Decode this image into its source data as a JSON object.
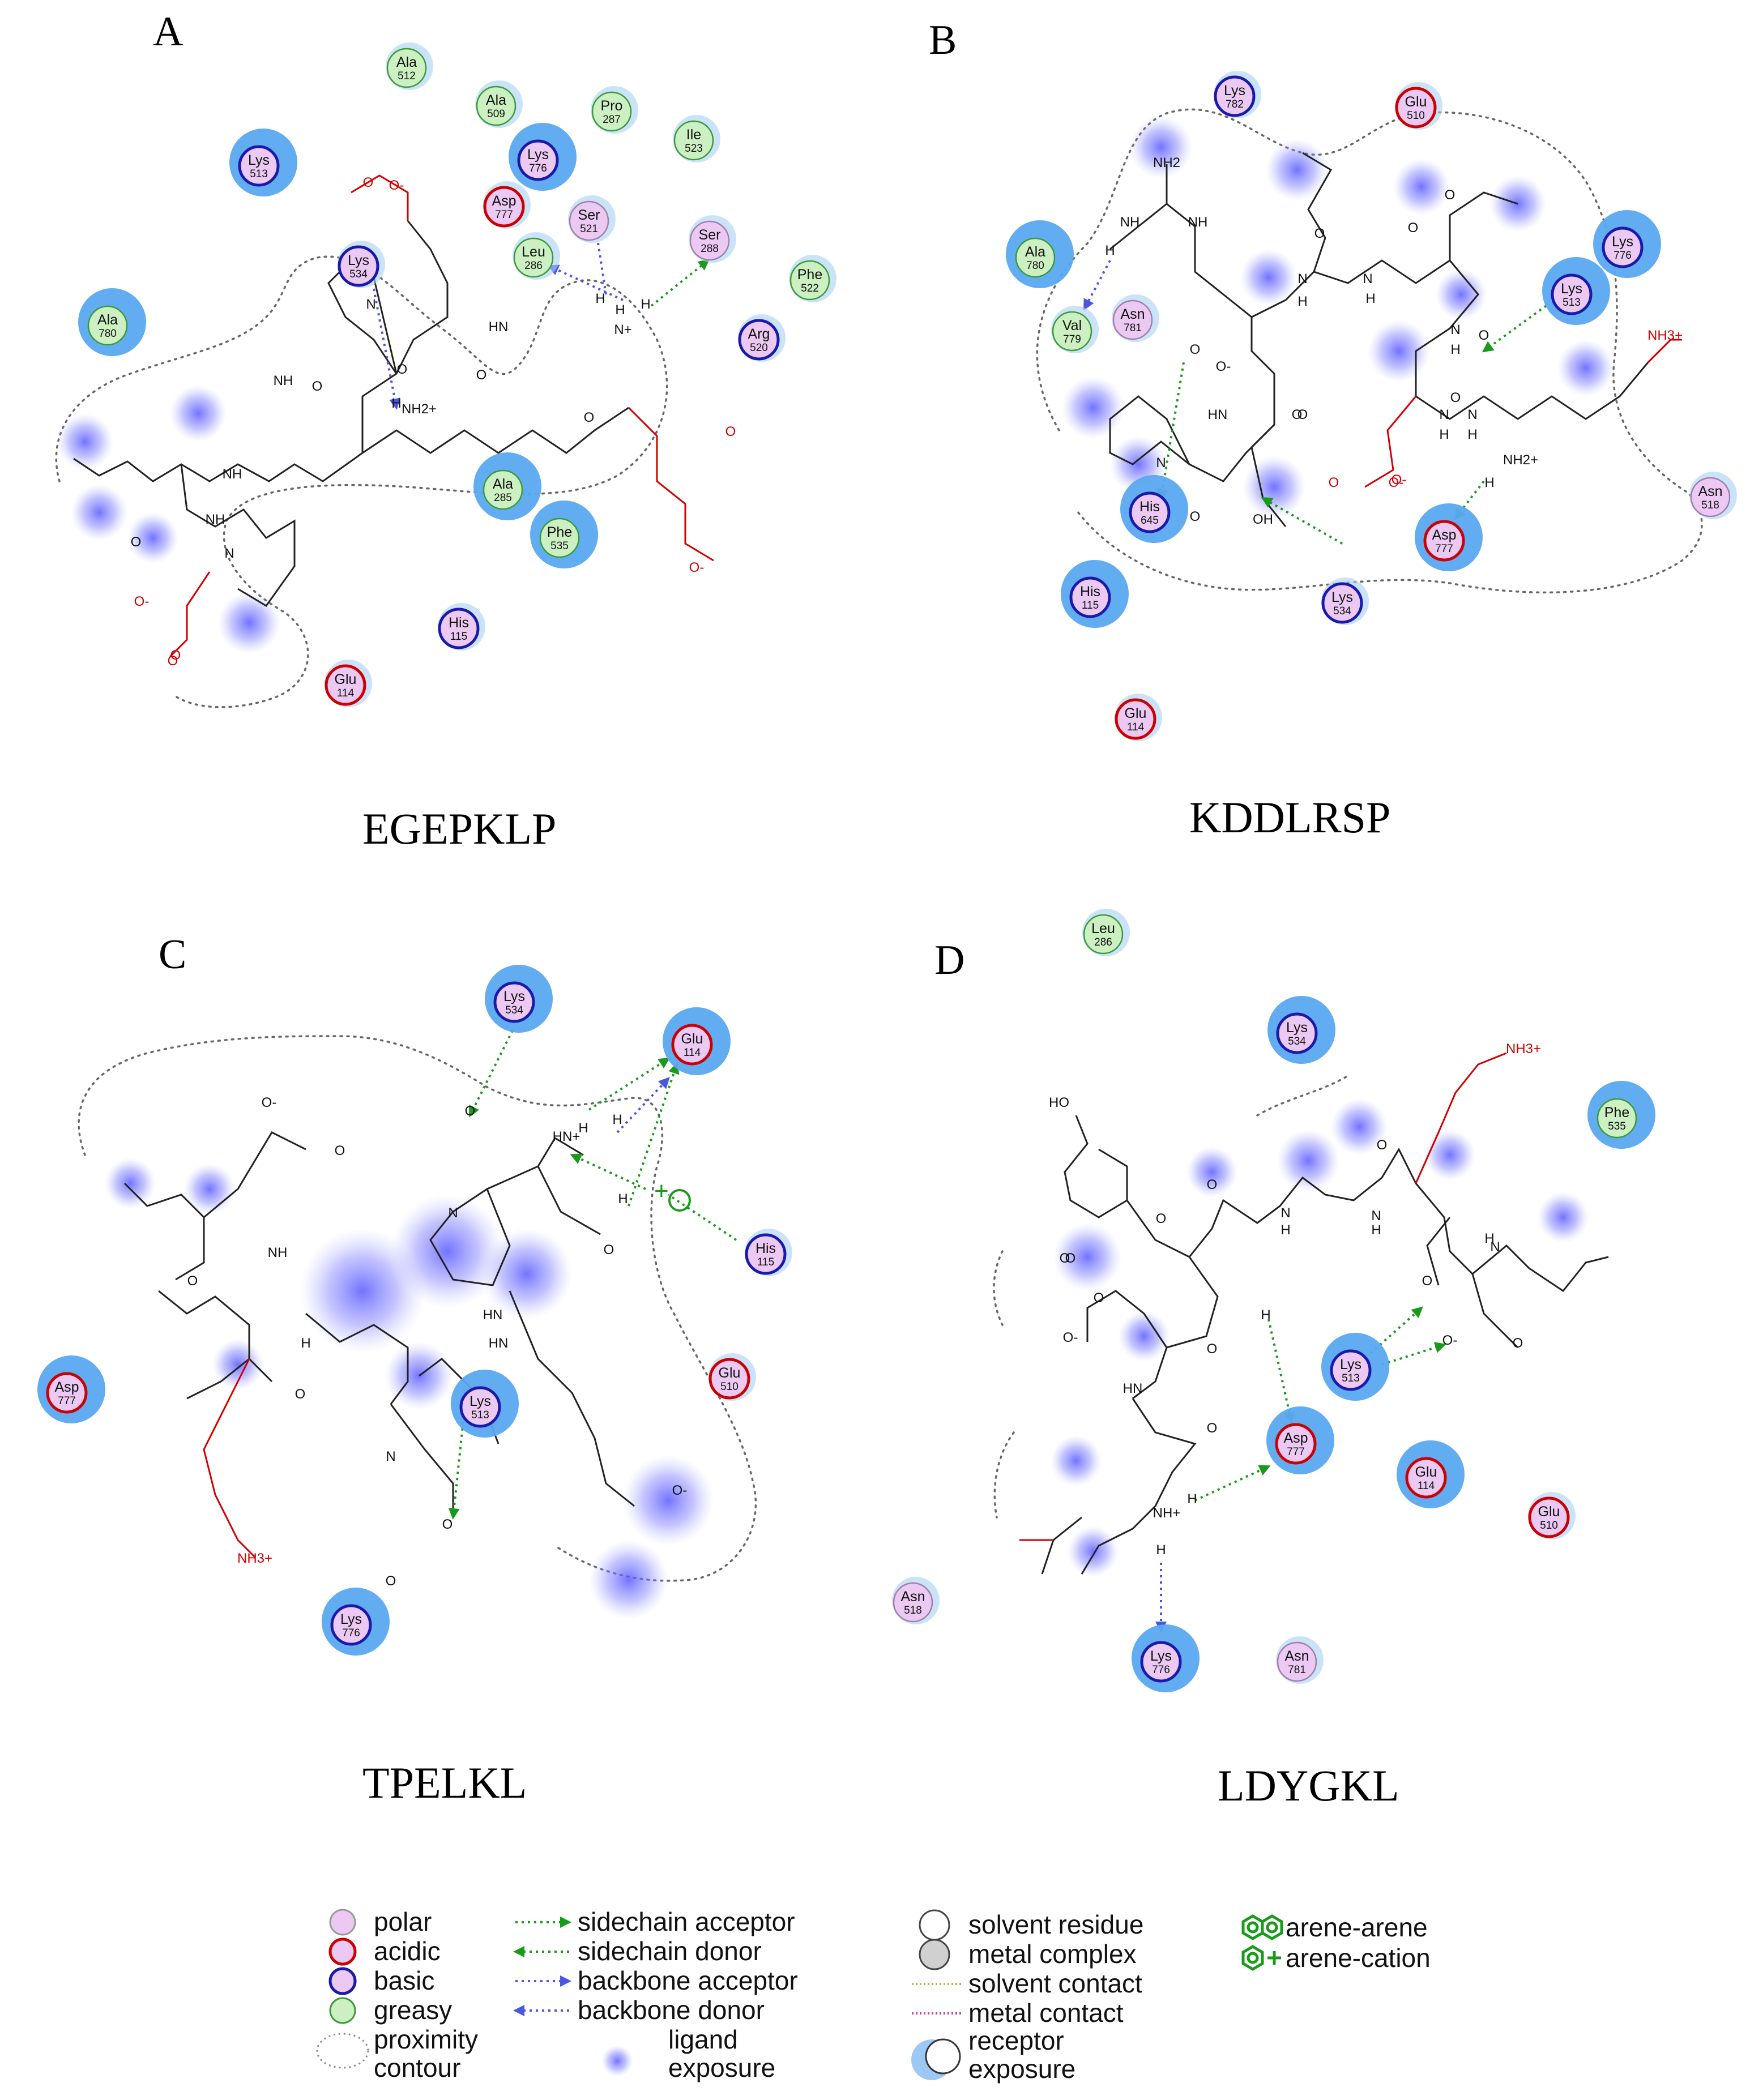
{
  "panels": [
    {
      "letter": "A",
      "caption": "EGEPKLP"
    },
    {
      "letter": "B",
      "caption": "KDDLRSP"
    },
    {
      "letter": "C",
      "caption": "TPELKL"
    },
    {
      "letter": "D",
      "caption": "LDYGKL"
    }
  ],
  "colors": {
    "polar_fill": "#ebc9f2",
    "acidic_ring": "#cc0000",
    "basic_ring": "#1a1aaa",
    "greasy_fill": "#cdf0c2",
    "greasy_ring": "#3a9a3a",
    "receptor_exposure": "#5aa8f0",
    "ligand_exposure": "#5a5aff",
    "sidechain_hbond": "#1a9a1a",
    "backbone_hbond": "#4a55e0"
  },
  "residues": {
    "A": [
      {
        "name": "Ala",
        "num": "512",
        "type": "greasy"
      },
      {
        "name": "Ala",
        "num": "509",
        "type": "greasy"
      },
      {
        "name": "Pro",
        "num": "287",
        "type": "greasy"
      },
      {
        "name": "Ile",
        "num": "523",
        "type": "greasy"
      },
      {
        "name": "Lys",
        "num": "513",
        "type": "basic"
      },
      {
        "name": "Lys",
        "num": "776",
        "type": "basic"
      },
      {
        "name": "Asp",
        "num": "777",
        "type": "acidic"
      },
      {
        "name": "Ser",
        "num": "521",
        "type": "polar"
      },
      {
        "name": "Ser",
        "num": "288",
        "type": "polar"
      },
      {
        "name": "Leu",
        "num": "286",
        "type": "greasy"
      },
      {
        "name": "Phe",
        "num": "522",
        "type": "greasy"
      },
      {
        "name": "Lys",
        "num": "534",
        "type": "basic"
      },
      {
        "name": "Ala",
        "num": "780",
        "type": "greasy"
      },
      {
        "name": "Arg",
        "num": "520",
        "type": "basic"
      },
      {
        "name": "Ala",
        "num": "285",
        "type": "greasy"
      },
      {
        "name": "Phe",
        "num": "535",
        "type": "greasy"
      },
      {
        "name": "His",
        "num": "115",
        "type": "basic"
      },
      {
        "name": "Glu",
        "num": "114",
        "type": "acidic"
      }
    ],
    "B": [
      {
        "name": "Lys",
        "num": "782",
        "type": "basic"
      },
      {
        "name": "Glu",
        "num": "510",
        "type": "acidic"
      },
      {
        "name": "Ala",
        "num": "780",
        "type": "greasy"
      },
      {
        "name": "Val",
        "num": "779",
        "type": "greasy"
      },
      {
        "name": "Asn",
        "num": "781",
        "type": "polar"
      },
      {
        "name": "Lys",
        "num": "776",
        "type": "basic"
      },
      {
        "name": "Lys",
        "num": "513",
        "type": "basic"
      },
      {
        "name": "His",
        "num": "645",
        "type": "basic"
      },
      {
        "name": "His",
        "num": "115",
        "type": "basic"
      },
      {
        "name": "Lys",
        "num": "534",
        "type": "basic"
      },
      {
        "name": "Asp",
        "num": "777",
        "type": "acidic"
      },
      {
        "name": "Asn",
        "num": "518",
        "type": "polar"
      },
      {
        "name": "Glu",
        "num": "114",
        "type": "acidic"
      }
    ],
    "C": [
      {
        "name": "Lys",
        "num": "534",
        "type": "basic"
      },
      {
        "name": "Glu",
        "num": "114",
        "type": "acidic"
      },
      {
        "name": "His",
        "num": "115",
        "type": "basic"
      },
      {
        "name": "Asp",
        "num": "777",
        "type": "acidic"
      },
      {
        "name": "Glu",
        "num": "510",
        "type": "acidic"
      },
      {
        "name": "Lys",
        "num": "513",
        "type": "basic"
      },
      {
        "name": "Lys",
        "num": "776",
        "type": "basic"
      }
    ],
    "D": [
      {
        "name": "Leu",
        "num": "286",
        "type": "greasy"
      },
      {
        "name": "Lys",
        "num": "534",
        "type": "basic"
      },
      {
        "name": "Phe",
        "num": "535",
        "type": "greasy"
      },
      {
        "name": "Lys",
        "num": "513",
        "type": "basic"
      },
      {
        "name": "Asp",
        "num": "777",
        "type": "acidic"
      },
      {
        "name": "Glu",
        "num": "114",
        "type": "acidic"
      },
      {
        "name": "Glu",
        "num": "510",
        "type": "acidic"
      },
      {
        "name": "Asn",
        "num": "518",
        "type": "polar"
      },
      {
        "name": "Lys",
        "num": "776",
        "type": "basic"
      },
      {
        "name": "Asn",
        "num": "781",
        "type": "polar"
      }
    ]
  },
  "atoms": {
    "A": [
      "O",
      "O-",
      "N",
      "NH",
      "HN",
      "H",
      "H",
      "H",
      "H",
      "N+",
      "NH2+",
      "O",
      "O",
      "O",
      "O-",
      "O",
      "O",
      "O-",
      "O",
      "NH",
      "NH",
      "O",
      "N",
      "O"
    ],
    "B": [
      "NH2",
      "NH",
      "NH",
      "H",
      "O-",
      "O",
      "O",
      "N",
      "H",
      "N",
      "H",
      "O",
      "O",
      "N",
      "H",
      "NH3+",
      "N",
      "H",
      "O",
      "O",
      "O-",
      "HN",
      "N",
      "O",
      "O",
      "O",
      "OH",
      "N",
      "H",
      "NH2+",
      "H",
      "O",
      "O-"
    ],
    "C": [
      "O-",
      "O",
      "NH",
      "O",
      "H",
      "N",
      "O",
      "HN",
      "O",
      "HN+",
      "H",
      "H",
      "H",
      "N",
      "O",
      "HN",
      "O",
      "O-",
      "NH3+",
      "O"
    ],
    "D": [
      "HO",
      "NH3+",
      "O",
      "O",
      "N",
      "H",
      "N",
      "H",
      "O",
      "N",
      "H",
      "O",
      "O-",
      "O",
      "O-",
      "O",
      "HN",
      "O",
      "O",
      "NH+",
      "H",
      "H",
      "O",
      "O",
      "H"
    ]
  },
  "legend": [
    {
      "label": "polar",
      "kind": "polar"
    },
    {
      "label": "acidic",
      "kind": "acidic"
    },
    {
      "label": "basic",
      "kind": "basic"
    },
    {
      "label": "greasy",
      "kind": "greasy"
    },
    {
      "label": "proximity",
      "label2": "contour",
      "kind": "contour"
    },
    {
      "label": "sidechain acceptor",
      "kind": "sc-acceptor"
    },
    {
      "label": "sidechain donor",
      "kind": "sc-donor"
    },
    {
      "label": "backbone acceptor",
      "kind": "bb-acceptor"
    },
    {
      "label": "backbone donor",
      "kind": "bb-donor"
    },
    {
      "label": "ligand",
      "label2": "exposure",
      "kind": "ligand-exposure"
    },
    {
      "label": "solvent residue",
      "kind": "solvent-residue"
    },
    {
      "label": "metal complex",
      "kind": "metal-complex"
    },
    {
      "label": "solvent contact",
      "kind": "solvent-contact"
    },
    {
      "label": "metal contact",
      "kind": "metal-contact"
    },
    {
      "label": "receptor",
      "label2": "exposure",
      "kind": "receptor-exposure"
    },
    {
      "label": "arene-arene",
      "kind": "arene-arene"
    },
    {
      "label": "arene-cation",
      "kind": "arene-cation"
    }
  ]
}
